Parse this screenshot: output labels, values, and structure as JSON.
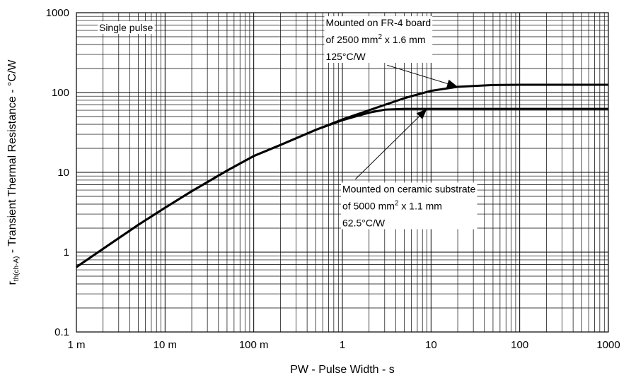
{
  "chart_data": {
    "type": "line",
    "title": "",
    "xlabel": "PW - Pulse Width - s",
    "ylabel": {
      "main": "r",
      "sub": "th(ch-A)",
      "rest": " - Transient Thermal Resistance - °C/W"
    },
    "xscale": "log",
    "yscale": "log",
    "xlim": [
      0.001,
      1000
    ],
    "ylim": [
      0.1,
      1000
    ],
    "grid": true,
    "x_ticks": [
      {
        "value": 0.001,
        "label": "1 m"
      },
      {
        "value": 0.01,
        "label": "10 m"
      },
      {
        "value": 0.1,
        "label": "100 m"
      },
      {
        "value": 1,
        "label": "1"
      },
      {
        "value": 10,
        "label": "10"
      },
      {
        "value": 100,
        "label": "100"
      },
      {
        "value": 1000,
        "label": "1000"
      }
    ],
    "y_ticks": [
      {
        "value": 0.1,
        "label": "0.1"
      },
      {
        "value": 1,
        "label": "1"
      },
      {
        "value": 10,
        "label": "10"
      },
      {
        "value": 100,
        "label": "100"
      },
      {
        "value": 1000,
        "label": "1000"
      }
    ],
    "series": [
      {
        "x": [
          0.001,
          0.002,
          0.005,
          0.01,
          0.02,
          0.05,
          0.1,
          0.2,
          0.5,
          1,
          2,
          5,
          10,
          20,
          50,
          100,
          1000
        ],
        "y": [
          0.65,
          1.1,
          2.2,
          3.6,
          5.8,
          10.5,
          16,
          22,
          34,
          46,
          60,
          85,
          105,
          118,
          124,
          125,
          125
        ]
      },
      {
        "x": [
          0.001,
          0.002,
          0.005,
          0.01,
          0.02,
          0.05,
          0.1,
          0.2,
          0.5,
          1,
          2,
          3,
          5,
          10,
          100,
          1000
        ],
        "y": [
          0.65,
          1.1,
          2.2,
          3.6,
          5.8,
          10.5,
          16,
          22,
          34,
          45,
          56,
          61,
          62.5,
          62.5,
          62.5,
          62.5
        ]
      }
    ],
    "annotations": [
      {
        "lines": [
          {
            "text": "Single pulse"
          }
        ],
        "x": 0.0018,
        "y": 590
      },
      {
        "lines": [
          {
            "text": "Mounted on FR-4 board"
          },
          {
            "text": "of 2500 mm",
            "sup": "2",
            "after": " x 1.6 mm"
          },
          {
            "text": "125°C/W"
          }
        ],
        "x": 0.65,
        "y": 680,
        "arrow_from": [
          3.2,
          220
        ],
        "arrow_to": [
          20,
          118
        ]
      },
      {
        "lines": [
          {
            "text": "Mounted on ceramic substrate"
          },
          {
            "text": "of 5000 mm",
            "sup": "2",
            "after": " x 1.1 mm"
          },
          {
            "text": "62.5°C/W"
          }
        ],
        "x": 1.0,
        "y": 5.6,
        "arrow_from": [
          1.4,
          8.2
        ],
        "arrow_to": [
          9,
          62.5
        ]
      }
    ]
  }
}
